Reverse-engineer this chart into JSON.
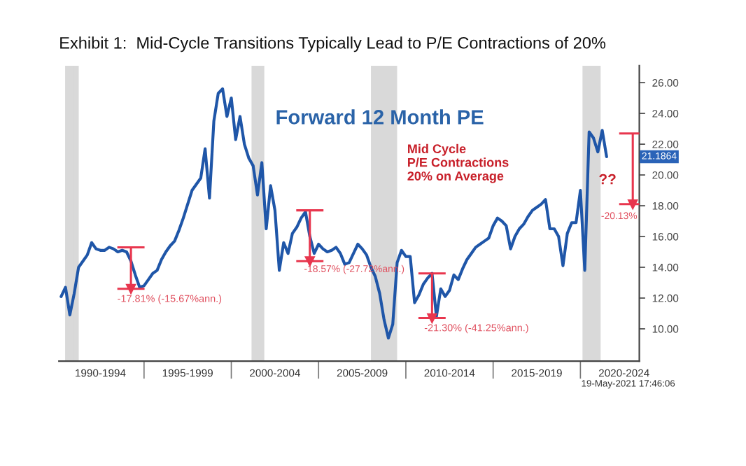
{
  "chart_data": {
    "type": "line",
    "title": "Exhibit 1:  Mid-Cycle Transitions Typically Lead to P/E Contractions of 20%",
    "subtitle": "Forward 12 Month PE",
    "categories": [
      null,
      null,
      null,
      null,
      null,
      null,
      null,
      null,
      null,
      "1990-1994",
      null,
      null,
      null,
      null,
      null,
      null,
      null,
      null,
      null,
      null,
      null,
      null,
      null,
      null,
      null,
      null,
      null,
      null,
      null,
      "1995-1999",
      null,
      null,
      null,
      null,
      null,
      null,
      null,
      null,
      null,
      null,
      null,
      null,
      null,
      null,
      null,
      null,
      null,
      null,
      null,
      "2000-2004",
      null,
      null,
      null,
      null,
      null,
      null,
      null,
      null,
      null,
      null,
      null,
      null,
      null,
      null,
      null,
      null,
      null,
      null,
      null,
      "2005-2009",
      null,
      null,
      null,
      null,
      null,
      null,
      null,
      null,
      null,
      null,
      null,
      null,
      null,
      null,
      null,
      null,
      null,
      null,
      null,
      "2010-2014",
      null,
      null,
      null,
      null,
      null,
      null,
      null,
      null,
      null,
      null,
      null,
      null,
      null,
      null,
      null,
      null,
      null,
      null,
      null,
      "2015-2019",
      null,
      null,
      null,
      null,
      null,
      null,
      null,
      null,
      null,
      null,
      null,
      null,
      null,
      null,
      null,
      null,
      null,
      null,
      null,
      "2020-2024",
      null,
      null,
      null
    ],
    "series": [
      {
        "color": "#1f56a8",
        "values": [
          12.1,
          12.7,
          10.9,
          12.3,
          14.0,
          14.4,
          14.8,
          15.6,
          15.2,
          15.1,
          15.1,
          15.3,
          15.2,
          15.0,
          15.1,
          15.0,
          14.4,
          13.5,
          12.7,
          12.8,
          13.2,
          13.6,
          13.8,
          14.5,
          15.0,
          15.4,
          15.7,
          16.4,
          17.2,
          18.1,
          19.0,
          19.4,
          19.8,
          21.7,
          18.5,
          23.5,
          25.3,
          25.6,
          23.8,
          25.0,
          22.3,
          23.8,
          22.0,
          21.1,
          20.6,
          18.7,
          20.8,
          16.5,
          19.3,
          17.7,
          13.8,
          15.6,
          14.9,
          16.2,
          16.6,
          17.2,
          17.6,
          16.0,
          14.9,
          15.5,
          15.2,
          15.0,
          15.1,
          15.3,
          14.9,
          14.2,
          14.3,
          14.9,
          15.5,
          15.2,
          14.8,
          14.0,
          13.4,
          12.3,
          10.6,
          9.4,
          10.3,
          14.3,
          15.1,
          14.7,
          14.7,
          11.7,
          12.2,
          12.9,
          13.3,
          13.6,
          10.8,
          12.6,
          12.1,
          12.5,
          13.5,
          13.2,
          13.9,
          14.5,
          14.9,
          15.3,
          15.5,
          15.7,
          15.9,
          16.7,
          17.2,
          17.0,
          16.7,
          15.2,
          16.0,
          16.5,
          16.8,
          17.3,
          17.7,
          17.9,
          18.1,
          18.4,
          16.5,
          16.5,
          16.0,
          14.1,
          16.2,
          16.9,
          16.9,
          19.0,
          13.8,
          22.8,
          22.4,
          21.5,
          22.9,
          21.1864,
          null,
          null,
          null,
          null,
          null,
          null,
          null
        ]
      },
      {
        "type": "scatter",
        "color": "#e8364e",
        "marker": "triangle",
        "values": [
          null,
          null,
          null,
          null,
          null,
          null,
          null,
          null,
          null,
          null,
          null,
          null,
          null,
          null,
          null,
          null,
          12.6,
          null,
          null,
          null,
          null,
          null,
          null,
          null,
          null,
          null,
          null,
          null,
          null,
          null,
          null,
          null,
          null,
          null,
          null,
          null,
          null,
          null,
          null,
          null,
          null,
          null,
          null,
          null,
          null,
          null,
          null,
          null,
          null,
          null,
          null,
          null,
          null,
          null,
          null,
          null,
          null,
          14.4,
          null,
          null,
          null,
          null,
          null,
          null,
          null,
          null,
          null,
          null,
          null,
          null,
          null,
          null,
          null,
          null,
          null,
          null,
          null,
          null,
          null,
          null,
          null,
          null,
          null,
          null,
          null,
          10.7,
          null,
          null,
          null,
          null,
          null,
          null,
          null,
          null,
          null,
          null,
          null,
          null,
          null,
          null,
          null,
          null,
          null,
          null,
          null,
          null,
          null,
          null,
          null,
          null,
          null,
          null,
          null,
          null,
          null,
          null,
          null,
          null,
          null,
          null,
          null,
          null,
          null,
          null,
          null,
          null,
          null,
          null,
          null,
          null,
          null,
          18.1,
          null
        ],
        "errors": [
          null,
          null,
          null,
          null,
          null,
          null,
          null,
          null,
          null,
          null,
          null,
          null,
          null,
          null,
          null,
          null,
          [
            12.6,
            15.3
          ],
          null,
          null,
          null,
          null,
          null,
          null,
          null,
          null,
          null,
          null,
          null,
          null,
          null,
          null,
          null,
          null,
          null,
          null,
          null,
          null,
          null,
          null,
          null,
          null,
          null,
          null,
          null,
          null,
          null,
          null,
          null,
          null,
          null,
          null,
          null,
          null,
          null,
          null,
          null,
          null,
          [
            14.4,
            17.7
          ],
          null,
          null,
          null,
          null,
          null,
          null,
          null,
          null,
          null,
          null,
          null,
          null,
          null,
          null,
          null,
          null,
          null,
          null,
          null,
          null,
          null,
          null,
          null,
          null,
          null,
          null,
          null,
          [
            10.7,
            13.6
          ],
          null,
          null,
          null,
          null,
          null,
          null,
          null,
          null,
          null,
          null,
          null,
          null,
          null,
          null,
          null,
          null,
          null,
          null,
          null,
          null,
          null,
          null,
          null,
          null,
          null,
          null,
          null,
          null,
          null,
          null,
          null,
          null,
          null,
          null,
          null,
          null,
          null,
          null,
          null,
          null,
          null,
          null,
          null,
          null,
          null,
          [
            18.1,
            22.7
          ],
          null
        ]
      }
    ],
    "ylim": [
      7.9,
      27.1
    ],
    "yticks": [
      {
        "value": 10,
        "label": "10.00"
      },
      {
        "value": 12,
        "label": "12.00"
      },
      {
        "value": 14,
        "label": "14.00"
      },
      {
        "value": 16,
        "label": "16.00"
      },
      {
        "value": 18,
        "label": "18.00"
      },
      {
        "value": 20,
        "label": "20.00"
      },
      {
        "value": 22,
        "label": "22.00"
      },
      {
        "value": 24,
        "label": "24.00"
      },
      {
        "value": 26,
        "label": "26.00"
      }
    ],
    "annotations": [
      "Mid Cycle\nP/E Contractions\n20% on Average",
      "-17.81% (-15.67%ann.)",
      "-18.57% (-27.72%ann.)",
      "-21.30% (-41.25%ann.)",
      "??",
      "-20.13%",
      "21.1864",
      "19-May-2021 17:46:06"
    ]
  }
}
